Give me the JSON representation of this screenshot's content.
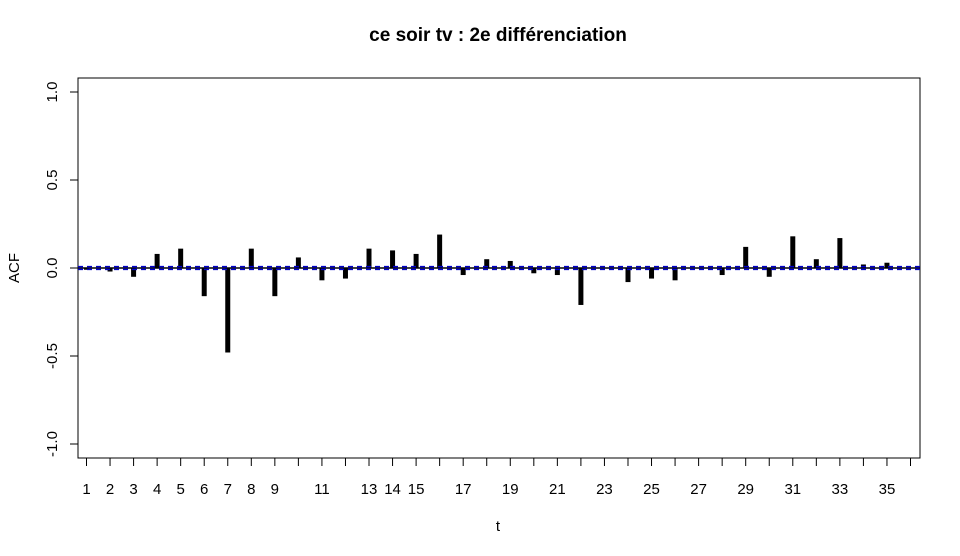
{
  "chart_data": {
    "type": "bar",
    "title": "ce soir tv : 2e différenciation",
    "xlabel": "t",
    "ylabel": "ACF",
    "ylim": [
      -1.0,
      1.0
    ],
    "xlim": [
      0.5,
      36.5
    ],
    "yticks": [
      -1.0,
      -0.5,
      0.0,
      0.5,
      1.0
    ],
    "ytick_labels": [
      "-1.0",
      "-0.5",
      "0.0",
      "0.5",
      "1.0"
    ],
    "xticks": [
      1,
      2,
      3,
      4,
      5,
      6,
      7,
      8,
      9,
      11,
      13,
      14,
      15,
      17,
      19,
      21,
      23,
      25,
      27,
      29,
      31,
      33,
      35
    ],
    "xtick_labels": [
      "1",
      "2",
      "3",
      "4",
      "5",
      "6",
      "7",
      "8",
      "9",
      "11",
      "13",
      "14",
      "15",
      "17",
      "19",
      "21",
      "23",
      "25",
      "27",
      "29",
      "31",
      "33",
      "35"
    ],
    "lags": [
      1,
      2,
      3,
      4,
      5,
      6,
      7,
      8,
      9,
      10,
      11,
      12,
      13,
      14,
      15,
      16,
      17,
      18,
      19,
      20,
      21,
      22,
      23,
      24,
      25,
      26,
      27,
      28,
      29,
      30,
      31,
      32,
      33,
      34,
      35,
      36
    ],
    "values": [
      -0.01,
      -0.02,
      -0.05,
      0.08,
      0.11,
      -0.16,
      -0.48,
      0.11,
      -0.16,
      0.06,
      -0.07,
      -0.06,
      0.11,
      0.1,
      0.08,
      0.19,
      -0.04,
      0.05,
      0.04,
      -0.03,
      -0.04,
      -0.21,
      0.0,
      -0.08,
      -0.06,
      -0.07,
      0.0,
      -0.04,
      0.12,
      -0.05,
      0.18,
      0.05,
      0.17,
      0.02,
      0.03,
      0.0
    ],
    "ci_bound": 0.008,
    "ci_color": "#0000cc",
    "bar_color": "#000000",
    "grid": false,
    "legend": "none"
  }
}
